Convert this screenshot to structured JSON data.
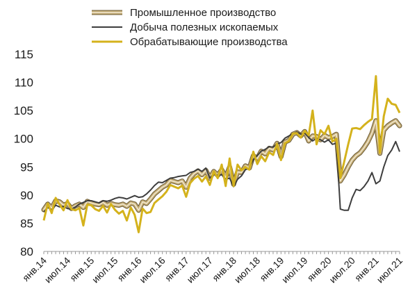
{
  "chart_data": {
    "type": "line",
    "title": "",
    "xlabel": "",
    "ylabel": "",
    "ylim": [
      80,
      115
    ],
    "yticks": [
      80,
      85,
      90,
      95,
      100,
      105,
      110,
      115
    ],
    "grid": false,
    "legend_position": "top",
    "x_tick_labels": [
      "янв.14",
      "июл.14",
      "янв.15",
      "июл.15",
      "янв.16",
      "июл.16",
      "янв.17",
      "июл.17",
      "янв.18",
      "июл.18",
      "янв.19",
      "июл.19",
      "янв.20",
      "июл.20",
      "янв.21",
      "июл.21"
    ],
    "x_tick_month_index": [
      0,
      6,
      12,
      18,
      24,
      30,
      36,
      42,
      48,
      54,
      60,
      66,
      72,
      78,
      84,
      90
    ],
    "x_range_months": [
      0,
      90
    ],
    "series": [
      {
        "name": "Промышленное производство",
        "color": "#c4ad78",
        "style": "double-band",
        "points": [
          [
            0,
            87.4
          ],
          [
            1,
            88.4
          ],
          [
            2,
            87.7
          ],
          [
            3,
            89.0
          ],
          [
            4,
            88.8
          ],
          [
            5,
            88.2
          ],
          [
            6,
            88.5
          ],
          [
            7,
            87.6
          ],
          [
            8,
            88.1
          ],
          [
            9,
            88.4
          ],
          [
            10,
            87.8
          ],
          [
            11,
            88.9
          ],
          [
            12,
            88.6
          ],
          [
            13,
            88.4
          ],
          [
            14,
            88.3
          ],
          [
            15,
            88.7
          ],
          [
            16,
            88.2
          ],
          [
            17,
            88.5
          ],
          [
            18,
            88.3
          ],
          [
            19,
            88.2
          ],
          [
            20,
            88.4
          ],
          [
            21,
            88.0
          ],
          [
            22,
            88.6
          ],
          [
            23,
            88.4
          ],
          [
            24,
            87.3
          ],
          [
            25,
            88.8
          ],
          [
            26,
            88.5
          ],
          [
            27,
            89.3
          ],
          [
            28,
            90.2
          ],
          [
            29,
            90.8
          ],
          [
            30,
            91.4
          ],
          [
            31,
            91.8
          ],
          [
            32,
            92.6
          ],
          [
            33,
            92.4
          ],
          [
            34,
            92.2
          ],
          [
            35,
            92.5
          ],
          [
            36,
            91.4
          ],
          [
            37,
            93.0
          ],
          [
            38,
            93.8
          ],
          [
            39,
            94.3
          ],
          [
            40,
            93.6
          ],
          [
            41,
            94.4
          ],
          [
            42,
            93.0
          ],
          [
            43,
            94.2
          ],
          [
            44,
            93.5
          ],
          [
            45,
            94.5
          ],
          [
            46,
            93.1
          ],
          [
            47,
            95.0
          ],
          [
            48,
            91.9
          ],
          [
            49,
            94.1
          ],
          [
            50,
            94.0
          ],
          [
            51,
            95.2
          ],
          [
            52,
            94.8
          ],
          [
            53,
            97.0
          ],
          [
            54,
            96.5
          ],
          [
            55,
            97.8
          ],
          [
            56,
            97.3
          ],
          [
            57,
            98.3
          ],
          [
            58,
            98.0
          ],
          [
            59,
            99.2
          ],
          [
            60,
            96.8
          ],
          [
            61,
            99.4
          ],
          [
            62,
            99.7
          ],
          [
            63,
            100.8
          ],
          [
            64,
            101.1
          ],
          [
            65,
            100.5
          ],
          [
            66,
            101.3
          ],
          [
            67,
            99.6
          ],
          [
            68,
            100.5
          ],
          [
            69,
            100.4
          ],
          [
            70,
            99.8
          ],
          [
            71,
            100.6
          ],
          [
            72,
            100.2
          ],
          [
            73,
            100.4
          ],
          [
            74,
            100.8
          ],
          [
            75,
            92.5
          ],
          [
            76,
            93.6
          ],
          [
            77,
            95.0
          ],
          [
            78,
            96.2
          ],
          [
            79,
            97.0
          ],
          [
            80,
            97.5
          ],
          [
            81,
            98.4
          ],
          [
            82,
            99.5
          ],
          [
            83,
            101.0
          ],
          [
            84,
            103.2
          ],
          [
            85,
            97.4
          ],
          [
            86,
            101.5
          ],
          [
            87,
            102.3
          ],
          [
            88,
            102.8
          ],
          [
            89,
            103.2
          ],
          [
            90,
            102.3
          ]
        ]
      },
      {
        "name": "Добыча полезных ископаемых",
        "color": "#3d3d3d",
        "style": "thin",
        "points": [
          [
            0,
            87.0
          ],
          [
            1,
            87.8
          ],
          [
            2,
            87.4
          ],
          [
            3,
            88.2
          ],
          [
            4,
            87.9
          ],
          [
            5,
            88.0
          ],
          [
            6,
            87.6
          ],
          [
            7,
            87.5
          ],
          [
            8,
            87.9
          ],
          [
            9,
            88.4
          ],
          [
            10,
            88.7
          ],
          [
            11,
            89.0
          ],
          [
            12,
            89.0
          ],
          [
            13,
            88.8
          ],
          [
            14,
            88.6
          ],
          [
            15,
            89.0
          ],
          [
            16,
            88.9
          ],
          [
            17,
            89.1
          ],
          [
            18,
            89.4
          ],
          [
            19,
            89.6
          ],
          [
            20,
            89.5
          ],
          [
            21,
            89.3
          ],
          [
            22,
            89.6
          ],
          [
            23,
            89.9
          ],
          [
            24,
            89.6
          ],
          [
            25,
            89.7
          ],
          [
            26,
            90.2
          ],
          [
            27,
            90.9
          ],
          [
            28,
            91.7
          ],
          [
            29,
            92.3
          ],
          [
            30,
            92.2
          ],
          [
            31,
            92.6
          ],
          [
            32,
            93.0
          ],
          [
            33,
            93.1
          ],
          [
            34,
            93.3
          ],
          [
            35,
            93.4
          ],
          [
            36,
            93.5
          ],
          [
            37,
            94.0
          ],
          [
            38,
            94.2
          ],
          [
            39,
            94.6
          ],
          [
            40,
            94.2
          ],
          [
            41,
            94.8
          ],
          [
            42,
            93.0
          ],
          [
            43,
            93.8
          ],
          [
            44,
            93.5
          ],
          [
            45,
            93.6
          ],
          [
            46,
            92.8
          ],
          [
            47,
            93.0
          ],
          [
            48,
            91.5
          ],
          [
            49,
            92.8
          ],
          [
            50,
            93.4
          ],
          [
            51,
            94.5
          ],
          [
            52,
            94.8
          ],
          [
            53,
            96.3
          ],
          [
            54,
            97.0
          ],
          [
            55,
            97.8
          ],
          [
            56,
            98.1
          ],
          [
            57,
            98.6
          ],
          [
            58,
            98.5
          ],
          [
            59,
            99.1
          ],
          [
            60,
            99.3
          ],
          [
            61,
            100.1
          ],
          [
            62,
            100.5
          ],
          [
            63,
            100.9
          ],
          [
            64,
            101.2
          ],
          [
            65,
            100.8
          ],
          [
            66,
            101.0
          ],
          [
            67,
            100.2
          ],
          [
            68,
            99.6
          ],
          [
            69,
            100.1
          ],
          [
            70,
            99.8
          ],
          [
            71,
            99.4
          ],
          [
            72,
            99.8
          ],
          [
            73,
            99.0
          ],
          [
            74,
            99.2
          ],
          [
            75,
            87.5
          ],
          [
            76,
            87.3
          ],
          [
            77,
            87.3
          ],
          [
            78,
            89.5
          ],
          [
            79,
            91.0
          ],
          [
            80,
            90.8
          ],
          [
            81,
            91.5
          ],
          [
            82,
            92.5
          ],
          [
            83,
            94.0
          ],
          [
            84,
            92.0
          ],
          [
            85,
            92.5
          ],
          [
            86,
            95.0
          ],
          [
            87,
            97.0
          ],
          [
            88,
            98.0
          ],
          [
            89,
            99.5
          ],
          [
            90,
            97.7
          ]
        ]
      },
      {
        "name": "Обрабатывающие производства",
        "color": "#d4b21c",
        "style": "thick",
        "points": [
          [
            0,
            85.5
          ],
          [
            1,
            88.5
          ],
          [
            2,
            86.8
          ],
          [
            3,
            89.5
          ],
          [
            4,
            88.3
          ],
          [
            5,
            87.3
          ],
          [
            6,
            89.1
          ],
          [
            7,
            87.5
          ],
          [
            8,
            87.3
          ],
          [
            9,
            87.7
          ],
          [
            10,
            84.6
          ],
          [
            11,
            88.3
          ],
          [
            12,
            88.2
          ],
          [
            13,
            87.5
          ],
          [
            14,
            87.2
          ],
          [
            15,
            88.1
          ],
          [
            16,
            86.9
          ],
          [
            17,
            88.4
          ],
          [
            18,
            87.4
          ],
          [
            19,
            86.7
          ],
          [
            20,
            87.2
          ],
          [
            21,
            85.5
          ],
          [
            22,
            87.8
          ],
          [
            23,
            86.5
          ],
          [
            24,
            83.4
          ],
          [
            25,
            87.6
          ],
          [
            26,
            86.8
          ],
          [
            27,
            87.0
          ],
          [
            28,
            88.6
          ],
          [
            29,
            89.2
          ],
          [
            30,
            89.8
          ],
          [
            31,
            90.6
          ],
          [
            32,
            91.8
          ],
          [
            33,
            91.5
          ],
          [
            34,
            91.2
          ],
          [
            35,
            91.7
          ],
          [
            36,
            89.7
          ],
          [
            37,
            92.1
          ],
          [
            38,
            92.9
          ],
          [
            39,
            93.4
          ],
          [
            40,
            92.4
          ],
          [
            41,
            93.3
          ],
          [
            42,
            91.8
          ],
          [
            43,
            94.2
          ],
          [
            44,
            93.0
          ],
          [
            45,
            95.4
          ],
          [
            46,
            91.6
          ],
          [
            47,
            96.5
          ],
          [
            48,
            91.6
          ],
          [
            49,
            95.4
          ],
          [
            50,
            94.4
          ],
          [
            51,
            95.0
          ],
          [
            52,
            94.5
          ],
          [
            53,
            97.7
          ],
          [
            54,
            95.5
          ],
          [
            55,
            96.9
          ],
          [
            56,
            96.0
          ],
          [
            57,
            97.6
          ],
          [
            58,
            97.1
          ],
          [
            59,
            99.1
          ],
          [
            60,
            96.2
          ],
          [
            61,
            99.2
          ],
          [
            62,
            99.6
          ],
          [
            63,
            100.9
          ],
          [
            64,
            101.0
          ],
          [
            65,
            100.2
          ],
          [
            66,
            101.4
          ],
          [
            67,
            100.6
          ],
          [
            68,
            105.0
          ],
          [
            69,
            99.0
          ],
          [
            70,
            101.5
          ],
          [
            71,
            100.8
          ],
          [
            72,
            102.3
          ],
          [
            73,
            99.5
          ],
          [
            74,
            100.0
          ],
          [
            75,
            93.0
          ],
          [
            76,
            96.0
          ],
          [
            77,
            99.0
          ],
          [
            78,
            101.8
          ],
          [
            79,
            101.9
          ],
          [
            80,
            101.7
          ],
          [
            81,
            102.4
          ],
          [
            82,
            103.0
          ],
          [
            83,
            103.5
          ],
          [
            84,
            111.1
          ],
          [
            85,
            97.5
          ],
          [
            86,
            104.0
          ],
          [
            87,
            107.1
          ],
          [
            88,
            106.2
          ],
          [
            89,
            106.0
          ],
          [
            90,
            104.6
          ]
        ]
      }
    ]
  }
}
